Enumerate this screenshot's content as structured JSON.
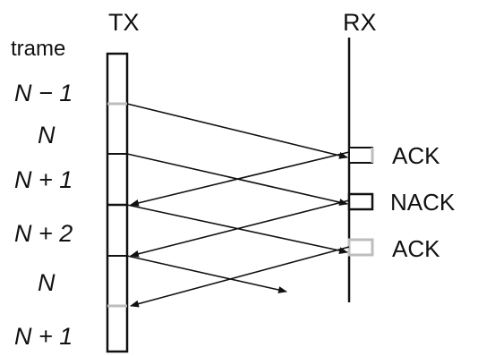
{
  "header": {
    "tx": "TX",
    "rx": "RX",
    "trame": "trame"
  },
  "frames": [
    {
      "label": "N − 1"
    },
    {
      "label": "N"
    },
    {
      "label": "N + 1"
    },
    {
      "label": "N + 2"
    },
    {
      "label": "N"
    },
    {
      "label": "N + 1"
    }
  ],
  "responses": [
    {
      "label": "ACK"
    },
    {
      "label": "NACK"
    },
    {
      "label": "ACK"
    }
  ],
  "colors": {
    "line": "#111111",
    "marker_grey": "#bdbdbd"
  }
}
